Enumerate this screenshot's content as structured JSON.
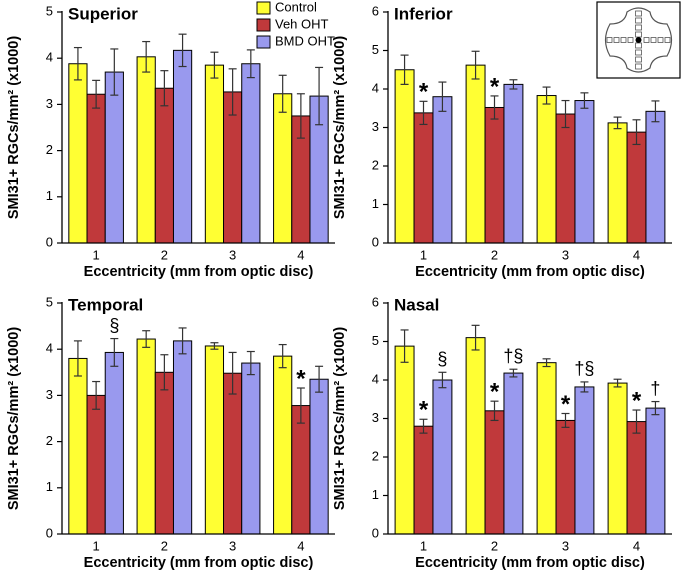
{
  "chart_data": [
    {
      "type": "bar",
      "title": "Superior",
      "ylabel": "SMI31+ RGCs/mm² (x1000)",
      "xlabel": "Eccentricity (mm from optic disc)",
      "categories": [
        "1",
        "2",
        "3",
        "4"
      ],
      "ylim": [
        0,
        5
      ],
      "yticks": [
        0,
        1,
        2,
        3,
        4,
        5
      ],
      "legend": "top-right",
      "series": [
        {
          "name": "Control",
          "color": "#ffff33",
          "values": [
            3.88,
            4.03,
            3.85,
            3.23
          ],
          "errors": [
            0.35,
            0.33,
            0.28,
            0.4
          ]
        },
        {
          "name": "Veh OHT",
          "color": "#c0393b",
          "values": [
            3.22,
            3.35,
            3.27,
            2.75
          ],
          "errors": [
            0.3,
            0.38,
            0.5,
            0.48
          ]
        },
        {
          "name": "BMD OHT",
          "color": "#9999ee",
          "values": [
            3.7,
            4.17,
            3.88,
            3.18
          ],
          "errors": [
            0.5,
            0.35,
            0.3,
            0.62
          ]
        }
      ]
    },
    {
      "type": "bar",
      "title": "Inferior",
      "ylabel": "SMI31+ RGCs/mm² (x1000)",
      "xlabel": "Eccentricity (mm from optic disc)",
      "categories": [
        "1",
        "2",
        "3",
        "4"
      ],
      "ylim": [
        0,
        6
      ],
      "yticks": [
        0,
        1,
        2,
        3,
        4,
        5,
        6
      ],
      "series": [
        {
          "color": "#ffff33",
          "values": [
            4.5,
            4.62,
            3.83,
            3.12
          ],
          "errors": [
            0.38,
            0.36,
            0.22,
            0.15
          ]
        },
        {
          "color": "#c0393b",
          "values": [
            3.38,
            3.52,
            3.35,
            2.88
          ],
          "errors": [
            0.3,
            0.3,
            0.35,
            0.32
          ],
          "annotations": [
            "*",
            "*",
            null,
            null
          ]
        },
        {
          "color": "#9999ee",
          "values": [
            3.8,
            4.12,
            3.7,
            3.42
          ],
          "errors": [
            0.38,
            0.12,
            0.2,
            0.27
          ]
        }
      ]
    },
    {
      "type": "bar",
      "title": "Temporal",
      "ylabel": "SMI31+ RGCs/mm² (x1000)",
      "xlabel": "Eccentricity (mm from optic disc)",
      "categories": [
        "1",
        "2",
        "3",
        "4"
      ],
      "ylim": [
        0,
        5
      ],
      "yticks": [
        0,
        1,
        2,
        3,
        4,
        5
      ],
      "series": [
        {
          "color": "#ffff33",
          "values": [
            3.8,
            4.22,
            4.07,
            3.85
          ],
          "errors": [
            0.38,
            0.18,
            0.07,
            0.25
          ]
        },
        {
          "color": "#c0393b",
          "values": [
            3.0,
            3.5,
            3.48,
            2.78
          ],
          "errors": [
            0.3,
            0.38,
            0.45,
            0.38
          ],
          "annotations": [
            null,
            null,
            null,
            "*"
          ]
        },
        {
          "color": "#9999ee",
          "values": [
            3.93,
            4.18,
            3.7,
            3.35
          ],
          "errors": [
            0.3,
            0.28,
            0.25,
            0.28
          ],
          "annotations": [
            "§",
            null,
            null,
            null
          ]
        }
      ]
    },
    {
      "type": "bar",
      "title": "Nasal",
      "ylabel": "SMI31+ RGCs/mm² (x1000)",
      "xlabel": "Eccentricity (mm from optic disc)",
      "categories": [
        "1",
        "2",
        "3",
        "4"
      ],
      "ylim": [
        0,
        6
      ],
      "yticks": [
        0,
        1,
        2,
        3,
        4,
        5,
        6
      ],
      "series": [
        {
          "color": "#ffff33",
          "values": [
            4.88,
            5.1,
            4.45,
            3.92
          ],
          "errors": [
            0.42,
            0.32,
            0.1,
            0.1
          ]
        },
        {
          "color": "#c0393b",
          "values": [
            2.8,
            3.2,
            2.95,
            2.92
          ],
          "errors": [
            0.18,
            0.25,
            0.18,
            0.3
          ],
          "annotations": [
            "*",
            "*",
            "*",
            "*"
          ]
        },
        {
          "color": "#9999ee",
          "values": [
            4.0,
            4.18,
            3.82,
            3.27
          ],
          "errors": [
            0.2,
            0.1,
            0.13,
            0.17
          ],
          "annotations": [
            "§",
            "†§",
            "†§",
            "†"
          ]
        }
      ]
    }
  ]
}
